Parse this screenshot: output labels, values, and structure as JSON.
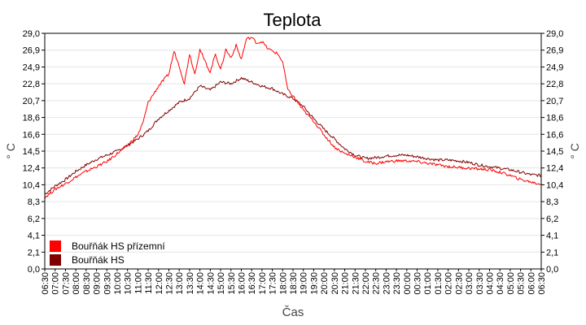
{
  "chart_data": {
    "type": "line",
    "title": "Teplota",
    "xlabel": "Čas",
    "ylabel": "° C",
    "ylim": [
      0,
      29.0
    ],
    "yticks": [
      "0,0",
      "2,1",
      "4,1",
      "6,2",
      "8,3",
      "10,4",
      "12,4",
      "14,5",
      "16,6",
      "18,6",
      "20,7",
      "22,8",
      "24,9",
      "26,9",
      "29,0"
    ],
    "xticks": [
      "06:30",
      "07:00",
      "07:30",
      "08:00",
      "08:30",
      "09:00",
      "09:30",
      "10:00",
      "10:30",
      "11:00",
      "11:30",
      "12:00",
      "12:30",
      "13:00",
      "13:30",
      "14:00",
      "14:30",
      "15:00",
      "15:30",
      "16:00",
      "16:30",
      "17:00",
      "17:30",
      "18:00",
      "18:30",
      "19:00",
      "19:30",
      "20:00",
      "20:30",
      "21:00",
      "21:30",
      "22:00",
      "22:30",
      "23:00",
      "23:30",
      "00:00",
      "00:30",
      "01:00",
      "01:30",
      "02:00",
      "02:30",
      "03:00",
      "03:30",
      "04:00",
      "04:30",
      "05:00",
      "05:30",
      "06:00",
      "06:30"
    ],
    "grid": true,
    "legend_position": "bottom-left",
    "series": [
      {
        "name": "Bouřňák HS přízemní",
        "color": "#ff0000",
        "x": [
          "06:30",
          "07:00",
          "07:30",
          "08:00",
          "08:30",
          "09:00",
          "09:30",
          "10:00",
          "10:30",
          "11:00",
          "11:15",
          "11:30",
          "12:00",
          "12:30",
          "12:45",
          "13:00",
          "13:15",
          "13:30",
          "13:45",
          "14:00",
          "14:15",
          "14:30",
          "14:45",
          "15:00",
          "15:15",
          "15:30",
          "15:45",
          "16:00",
          "16:15",
          "16:30",
          "16:45",
          "17:00",
          "17:15",
          "17:30",
          "17:45",
          "18:00",
          "18:15",
          "18:30",
          "19:00",
          "19:30",
          "20:00",
          "20:30",
          "21:00",
          "21:30",
          "22:00",
          "22:30",
          "23:00",
          "23:30",
          "00:00",
          "00:30",
          "01:00",
          "01:30",
          "02:00",
          "02:30",
          "03:00",
          "03:30",
          "04:00",
          "04:30",
          "05:00",
          "05:30",
          "06:00",
          "06:30"
        ],
        "y": [
          8.8,
          9.8,
          10.5,
          11.3,
          12.0,
          12.6,
          13.2,
          14.2,
          15.2,
          16.5,
          18.0,
          20.5,
          22.5,
          24.0,
          26.8,
          25.0,
          22.8,
          26.5,
          24.0,
          27.0,
          25.5,
          24.2,
          26.5,
          24.5,
          27.0,
          26.0,
          27.5,
          25.8,
          28.3,
          28.5,
          27.8,
          28.0,
          27.2,
          26.8,
          26.5,
          25.5,
          22.0,
          21.3,
          19.5,
          18.2,
          16.5,
          15.0,
          14.2,
          13.8,
          13.2,
          13.0,
          13.2,
          13.3,
          13.3,
          13.2,
          13.0,
          12.8,
          12.6,
          12.5,
          12.4,
          12.3,
          12.2,
          11.9,
          11.5,
          11.0,
          10.7,
          10.4
        ]
      },
      {
        "name": "Bouřňák HS",
        "color": "#800000",
        "x": [
          "06:30",
          "07:00",
          "07:30",
          "08:00",
          "08:30",
          "09:00",
          "09:30",
          "10:00",
          "10:30",
          "11:00",
          "11:30",
          "12:00",
          "12:30",
          "13:00",
          "13:30",
          "14:00",
          "14:30",
          "15:00",
          "15:30",
          "16:00",
          "16:30",
          "17:00",
          "17:30",
          "18:00",
          "18:30",
          "19:00",
          "19:30",
          "20:00",
          "20:30",
          "21:00",
          "21:30",
          "22:00",
          "22:30",
          "23:00",
          "23:30",
          "00:00",
          "00:30",
          "01:00",
          "01:30",
          "02:00",
          "02:30",
          "03:00",
          "03:30",
          "04:00",
          "04:30",
          "05:00",
          "05:30",
          "06:00",
          "06:30"
        ],
        "y": [
          9.2,
          10.2,
          11.0,
          12.0,
          12.8,
          13.5,
          14.0,
          14.5,
          15.2,
          16.0,
          17.0,
          18.5,
          19.5,
          20.5,
          21.0,
          22.5,
          22.0,
          23.0,
          22.8,
          23.5,
          23.0,
          22.5,
          22.2,
          21.5,
          21.0,
          20.0,
          18.5,
          17.2,
          16.0,
          14.8,
          14.0,
          13.6,
          13.7,
          13.9,
          14.0,
          14.0,
          13.8,
          13.6,
          13.4,
          13.4,
          13.3,
          13.1,
          12.8,
          12.6,
          12.4,
          12.2,
          11.9,
          11.6,
          11.5
        ]
      }
    ]
  }
}
